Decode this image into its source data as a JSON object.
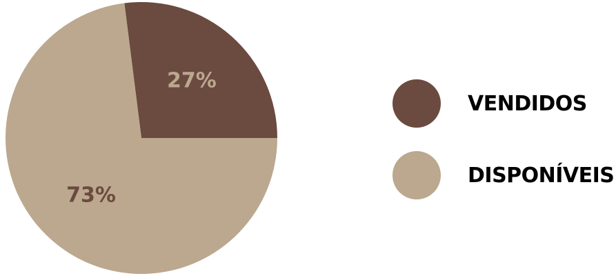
{
  "chart_data": {
    "type": "pie",
    "slices": [
      {
        "label": "VENDIDOS",
        "value": 27,
        "display": "27%",
        "color": "#6b4a3f",
        "label_color": "#bba88f"
      },
      {
        "label": "DISPONÍVEIS",
        "value": 73,
        "display": "73%",
        "color": "#bba88f",
        "label_color": "#6b4a3f"
      }
    ],
    "legend_position": "right"
  }
}
